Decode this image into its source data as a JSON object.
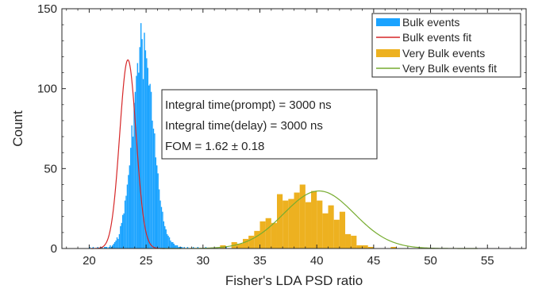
{
  "chart_data": {
    "type": "histogram",
    "title": "",
    "xlabel": "Fisher's LDA PSD ratio",
    "ylabel": "Count",
    "xlim": [
      17.6,
      58.4
    ],
    "ylim": [
      0,
      150
    ],
    "xticks": [
      20,
      25,
      30,
      35,
      40,
      45,
      50,
      55
    ],
    "yticks": [
      0,
      50,
      100,
      150
    ],
    "grid": false,
    "legend_position": "top-right",
    "series": [
      {
        "name": "Bulk events",
        "kind": "histogram",
        "color": "#1aa3ff",
        "bin_start": 20.0,
        "bin_width": 0.1,
        "counts": [
          1,
          0,
          0,
          1,
          0,
          0,
          0,
          1,
          0,
          0,
          1,
          1,
          0,
          1,
          1,
          1,
          0,
          1,
          2,
          1,
          2,
          3,
          4,
          5,
          7,
          6,
          9,
          14,
          16,
          21,
          22,
          30,
          33,
          40,
          46,
          52,
          63,
          77,
          70,
          91,
          98,
          108,
          116,
          110,
          126,
          141,
          131,
          106,
          135,
          124,
          119,
          113,
          102,
          103,
          98,
          80,
          75,
          72,
          57,
          52,
          47,
          37,
          30,
          26,
          23,
          17,
          14,
          12,
          9,
          8,
          7,
          5,
          4,
          4,
          3,
          2,
          2,
          2,
          1,
          1,
          1,
          1,
          0,
          1,
          0,
          0,
          1,
          0,
          0,
          0,
          0,
          1,
          0,
          0,
          0,
          1,
          0,
          0,
          0,
          0,
          0,
          0,
          1,
          0,
          0,
          0,
          0,
          0,
          0,
          0,
          0,
          0,
          0,
          0,
          0,
          0,
          0,
          0,
          0,
          0,
          1
        ]
      },
      {
        "name": "Bulk events fit",
        "kind": "gaussian",
        "color": "#d62728",
        "amplitude": 118,
        "mean": 23.4,
        "sigma": 0.72
      },
      {
        "name": "Very Bulk events",
        "kind": "histogram",
        "color": "#edb120",
        "bin_start": 31.5,
        "bin_width": 0.5,
        "counts": [
          2,
          0,
          4,
          3,
          6,
          8,
          11,
          17,
          19,
          16,
          34,
          30,
          31,
          35,
          40,
          29,
          36,
          30,
          22,
          27,
          18,
          23,
          9,
          8,
          2,
          2,
          1,
          0,
          0,
          0,
          1
        ]
      },
      {
        "name": "Very Bulk events fit",
        "kind": "gaussian",
        "color": "#77ac30",
        "amplitude": 36,
        "mean": 40.2,
        "sigma": 3.1
      }
    ],
    "annotations": [
      "Integral time(prompt) = 3000 ns",
      "Integral time(delay) = 3000 ns",
      "FOM = 1.62 ± 0.18"
    ]
  }
}
